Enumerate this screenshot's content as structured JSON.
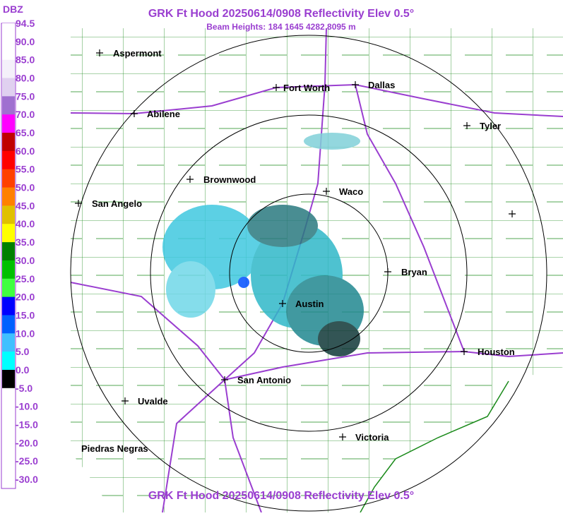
{
  "header": {
    "title": "GRK Ft Hood 20250614/0908 Reflectivity Elev 0.5°",
    "subtitle": "Beam Heights: 184 1645 4282 8095 m"
  },
  "footer": {
    "title": "GRK Ft Hood 20250614/0908 Reflectivity Elev 0.5°"
  },
  "legend": {
    "unit": "DBZ",
    "labels": [
      "94.5",
      "90.0",
      "85.0",
      "80.0",
      "75.0",
      "70.0",
      "65.0",
      "60.0",
      "55.0",
      "50.0",
      "45.0",
      "40.0",
      "35.0",
      "30.0",
      "25.0",
      "20.0",
      "15.0",
      "10.0",
      "5.0",
      "0.0",
      "-5.0",
      "-10.0",
      "-15.0",
      "-20.0",
      "-25.0",
      "-30.0"
    ],
    "colors": [
      "#ffffff",
      "#ffffff",
      "#f4f0fa",
      "#e0d0f0",
      "#a070d0",
      "#ff00ff",
      "#c00000",
      "#ff0000",
      "#ff4000",
      "#ff8000",
      "#e0c000",
      "#ffff00",
      "#008000",
      "#00c000",
      "#40ff40",
      "#0000ff",
      "#0060ff",
      "#40c0ff",
      "#00ffff",
      "#000000",
      "#ffffff",
      "#ffffff",
      "#ffffff",
      "#ffffff",
      "#ffffff"
    ]
  },
  "cities": [
    {
      "name": "Aspermont"
    },
    {
      "name": "Abilene"
    },
    {
      "name": "Fort Worth"
    },
    {
      "name": "Dallas"
    },
    {
      "name": "Tyler"
    },
    {
      "name": "Brownwood"
    },
    {
      "name": "Waco"
    },
    {
      "name": "San Angelo"
    },
    {
      "name": "Bryan"
    },
    {
      "name": "Austin"
    },
    {
      "name": "Houston"
    },
    {
      "name": "San Antonio"
    },
    {
      "name": "Uvalde"
    },
    {
      "name": "Victoria"
    },
    {
      "name": "Piedras Negras"
    }
  ]
}
